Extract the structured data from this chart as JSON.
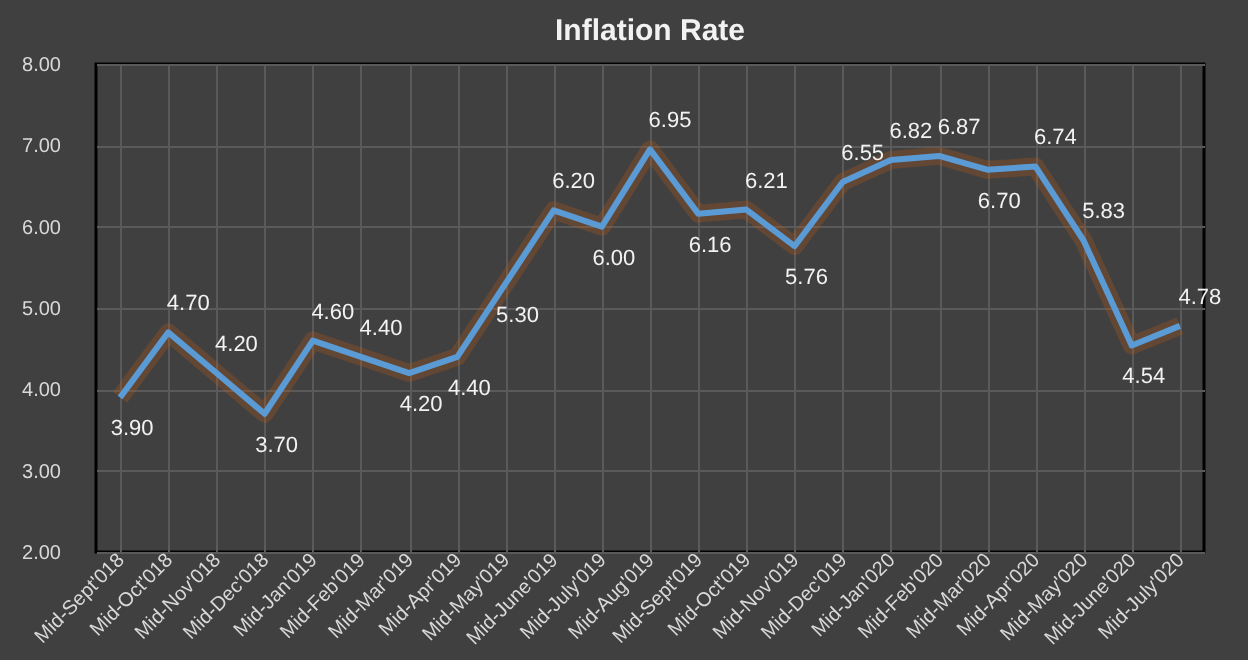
{
  "chart_data": {
    "type": "line",
    "title": "Inflation Rate",
    "categories": [
      "Mid-Sept'018",
      "Mid-Oct'018",
      "Mid-Nov'018",
      "Mid-Dec'018",
      "Mid-Jan'019",
      "Mid-Feb'019",
      "Mid-Mar'019",
      "Mid-Apr'019",
      "Mid-May'019",
      "Mid-June'019",
      "Mid-July'019",
      "Mid-Aug'019",
      "Mid-Sept'019",
      "Mid-Oct'019",
      "Mid-Nov'019",
      "Mid-Dec'019",
      "Mid-Jan'020",
      "Mid-Feb'020",
      "Mid-Mar'020",
      "Mid-Apr'020",
      "Mid-May'020",
      "Mid-June'020",
      "Mid-July'020"
    ],
    "series": [
      {
        "color": "#5b9bd5",
        "values": [
          3.9,
          4.7,
          4.2,
          3.7,
          4.6,
          4.4,
          4.2,
          4.4,
          5.3,
          6.2,
          6.0,
          6.95,
          6.16,
          6.21,
          5.76,
          6.55,
          6.82,
          6.87,
          6.7,
          6.74,
          5.83,
          4.54,
          4.78
        ],
        "value_labels": [
          "3.90",
          "4.70",
          "4.20",
          "3.70",
          "4.60",
          "4.40",
          "4.20",
          "4.40",
          "5.30",
          "6.20",
          "6.00",
          "6.95",
          "6.16",
          "6.21",
          "5.76",
          "6.55",
          "6.82",
          "6.87",
          "6.70",
          "6.74",
          "5.83",
          "4.54",
          "4.78"
        ]
      }
    ],
    "ylim": [
      2,
      8
    ],
    "yticks": [
      {
        "value": 2,
        "label": "2.00"
      },
      {
        "value": 3,
        "label": "3.00"
      },
      {
        "value": 4,
        "label": "4.00"
      },
      {
        "value": 5,
        "label": "5.00"
      },
      {
        "value": 6,
        "label": "6.00"
      },
      {
        "value": 7,
        "label": "7.00"
      },
      {
        "value": 8,
        "label": "8.00"
      }
    ],
    "grid": true,
    "marker": "none",
    "line_style": "solid"
  }
}
